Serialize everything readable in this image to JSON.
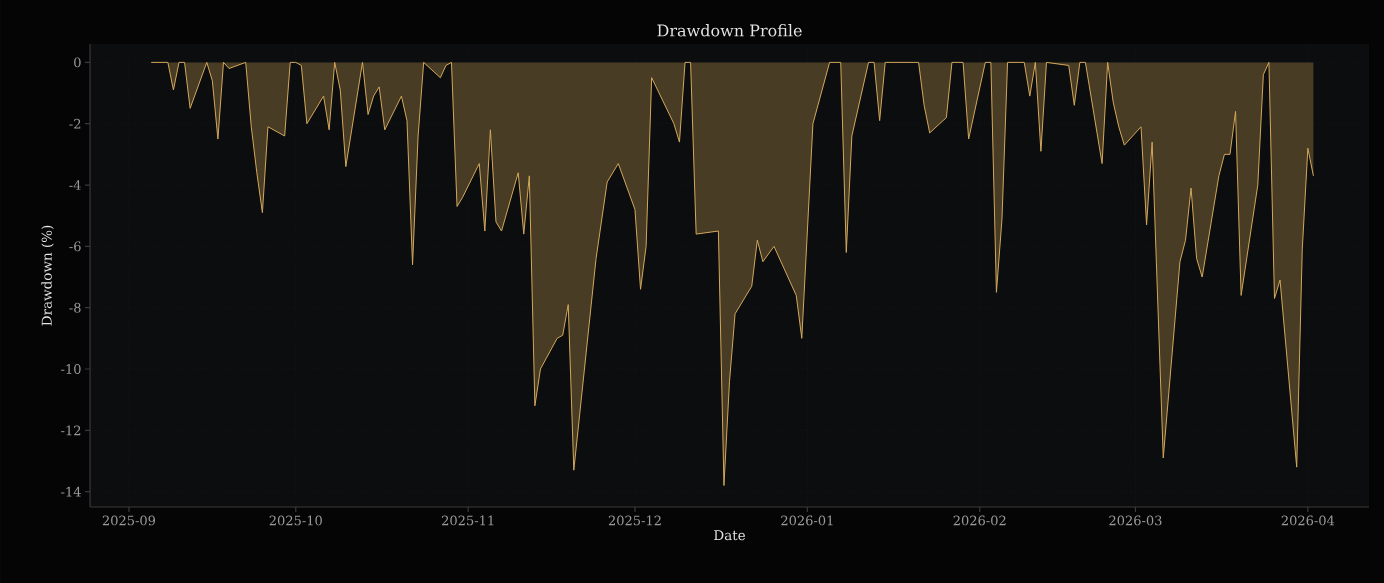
{
  "chart_data": {
    "type": "area",
    "title": "Drawdown Profile",
    "xlabel": "Date",
    "ylabel": "Drawdown (%)",
    "x": [
      "2025-09-05",
      "2025-09-08",
      "2025-09-09",
      "2025-09-10",
      "2025-09-11",
      "2025-09-12",
      "2025-09-15",
      "2025-09-16",
      "2025-09-17",
      "2025-09-18",
      "2025-09-19",
      "2025-09-22",
      "2025-09-23",
      "2025-09-24",
      "2025-09-25",
      "2025-09-26",
      "2025-09-29",
      "2025-09-30",
      "2025-10-01",
      "2025-10-02",
      "2025-10-03",
      "2025-10-06",
      "2025-10-07",
      "2025-10-08",
      "2025-10-09",
      "2025-10-10",
      "2025-10-13",
      "2025-10-14",
      "2025-10-15",
      "2025-10-16",
      "2025-10-17",
      "2025-10-20",
      "2025-10-21",
      "2025-10-22",
      "2025-10-23",
      "2025-10-24",
      "2025-10-27",
      "2025-10-28",
      "2025-10-29",
      "2025-10-30",
      "2025-10-31",
      "2025-11-03",
      "2025-11-04",
      "2025-11-05",
      "2025-11-06",
      "2025-11-07",
      "2025-11-10",
      "2025-11-11",
      "2025-11-12",
      "2025-11-13",
      "2025-11-14",
      "2025-11-17",
      "2025-11-18",
      "2025-11-19",
      "2025-11-20",
      "2025-11-24",
      "2025-11-26",
      "2025-11-28",
      "2025-12-01",
      "2025-12-02",
      "2025-12-03",
      "2025-12-04",
      "2025-12-08",
      "2025-12-09",
      "2025-12-10",
      "2025-12-11",
      "2025-12-12",
      "2025-12-16",
      "2025-12-17",
      "2025-12-18",
      "2025-12-19",
      "2025-12-22",
      "2025-12-23",
      "2025-12-24",
      "2025-12-26",
      "2025-12-30",
      "2025-12-31",
      "2026-01-02",
      "2026-01-05",
      "2026-01-07",
      "2026-01-08",
      "2026-01-09",
      "2026-01-12",
      "2026-01-13",
      "2026-01-14",
      "2026-01-15",
      "2026-01-21",
      "2026-01-22",
      "2026-01-23",
      "2026-01-26",
      "2026-01-27",
      "2026-01-29",
      "2026-01-30",
      "2026-02-02",
      "2026-02-03",
      "2026-02-04",
      "2026-02-05",
      "2026-02-06",
      "2026-02-09",
      "2026-02-10",
      "2026-02-11",
      "2026-02-12",
      "2026-02-13",
      "2026-02-17",
      "2026-02-18",
      "2026-02-19",
      "2026-02-20",
      "2026-02-23",
      "2026-02-24",
      "2026-02-25",
      "2026-02-26",
      "2026-02-27",
      "2026-03-02",
      "2026-03-03",
      "2026-03-04",
      "2026-03-06",
      "2026-03-09",
      "2026-03-10",
      "2026-03-11",
      "2026-03-12",
      "2026-03-13",
      "2026-03-16",
      "2026-03-17",
      "2026-03-18",
      "2026-03-19",
      "2026-03-20",
      "2026-03-23",
      "2026-03-24",
      "2026-03-25",
      "2026-03-26",
      "2026-03-27",
      "2026-03-30",
      "2026-03-31",
      "2026-04-01",
      "2026-04-02"
    ],
    "series": [
      {
        "color": "#d4a85a",
        "values": [
          0,
          0,
          -0.9,
          0,
          0,
          -1.5,
          0,
          -0.6,
          -2.5,
          0,
          -0.2,
          0,
          -2.1,
          -3.6,
          -4.9,
          -2.1,
          -2.4,
          0,
          0,
          -0.1,
          -2.0,
          -1.1,
          -2.2,
          0,
          -0.9,
          -3.4,
          0,
          -1.7,
          -1.1,
          -0.8,
          -2.2,
          -1.1,
          -1.9,
          -6.6,
          -2.4,
          0,
          -0.5,
          -0.1,
          0,
          -4.7,
          -4.4,
          -3.3,
          -5.5,
          -2.2,
          -5.2,
          -5.5,
          -3.6,
          -5.6,
          -3.7,
          -11.2,
          -10.0,
          -9.0,
          -8.9,
          -7.9,
          -13.3,
          -6.4,
          -3.9,
          -3.3,
          -4.8,
          -7.4,
          -6.0,
          -0.5,
          -2.0,
          -2.6,
          0,
          0,
          -5.6,
          -5.5,
          -13.8,
          -10.4,
          -8.2,
          -7.3,
          -5.8,
          -6.5,
          -6.0,
          -7.6,
          -9.0,
          -2.0,
          0,
          0,
          -6.2,
          -2.4,
          0,
          0,
          -1.9,
          0,
          0,
          -1.4,
          -2.3,
          -1.8,
          0,
          0,
          -2.5,
          0,
          0,
          -7.5,
          -5.1,
          0,
          0,
          -1.1,
          0,
          -2.9,
          0,
          -0.1,
          -1.4,
          0,
          0,
          -3.3,
          0,
          -1.3,
          -2.1,
          -2.7,
          -2.1,
          -5.3,
          -2.6,
          -12.9,
          -6.5,
          -5.8,
          -4.1,
          -6.4,
          -7.0,
          -3.7,
          -3.0,
          -3.0,
          -1.6,
          -7.6,
          -4.0,
          -0.4,
          0,
          -7.7,
          -7.1,
          -13.2,
          -6.1,
          -2.8,
          -3.7
        ]
      }
    ],
    "xlim": [
      "2025-08-25",
      "2026-04-12"
    ],
    "ylim": [
      -14.5,
      0.6
    ],
    "xticks": [
      "2025-09",
      "2025-10",
      "2025-11",
      "2025-12",
      "2026-01",
      "2026-02",
      "2026-03",
      "2026-04"
    ],
    "yticks": [
      0,
      -2,
      -4,
      -6,
      -8,
      -10,
      -12,
      -14
    ],
    "grid": true
  }
}
